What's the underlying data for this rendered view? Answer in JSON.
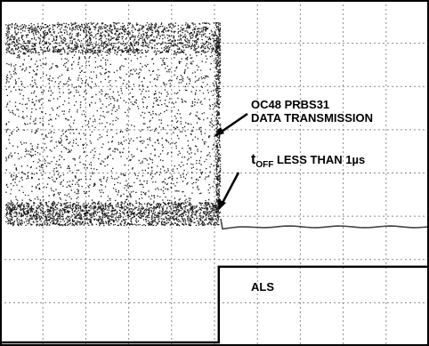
{
  "chart_data": {
    "type": "line",
    "title": "",
    "xlabel": "",
    "ylabel": "",
    "grid": true,
    "grid_divisions": {
      "x": 10,
      "y": 8
    },
    "annotations": {
      "signal_line1": "OC48 PRBS31",
      "signal_line2": "DATA TRANSMISSION",
      "toff_prefix": "t",
      "toff_sub": "OFF",
      "toff_suffix": " LESS THAN 1",
      "toff_unit": "µs",
      "als": "ALS"
    },
    "series": [
      {
        "name": "ALS",
        "x": [
          0,
          5.1,
          5.1,
          10
        ],
        "y": [
          0,
          0,
          1.75,
          1.75
        ]
      }
    ],
    "colors": {
      "trace": "#000000",
      "grid": "#8a8a8a",
      "frame": "#000000"
    }
  }
}
